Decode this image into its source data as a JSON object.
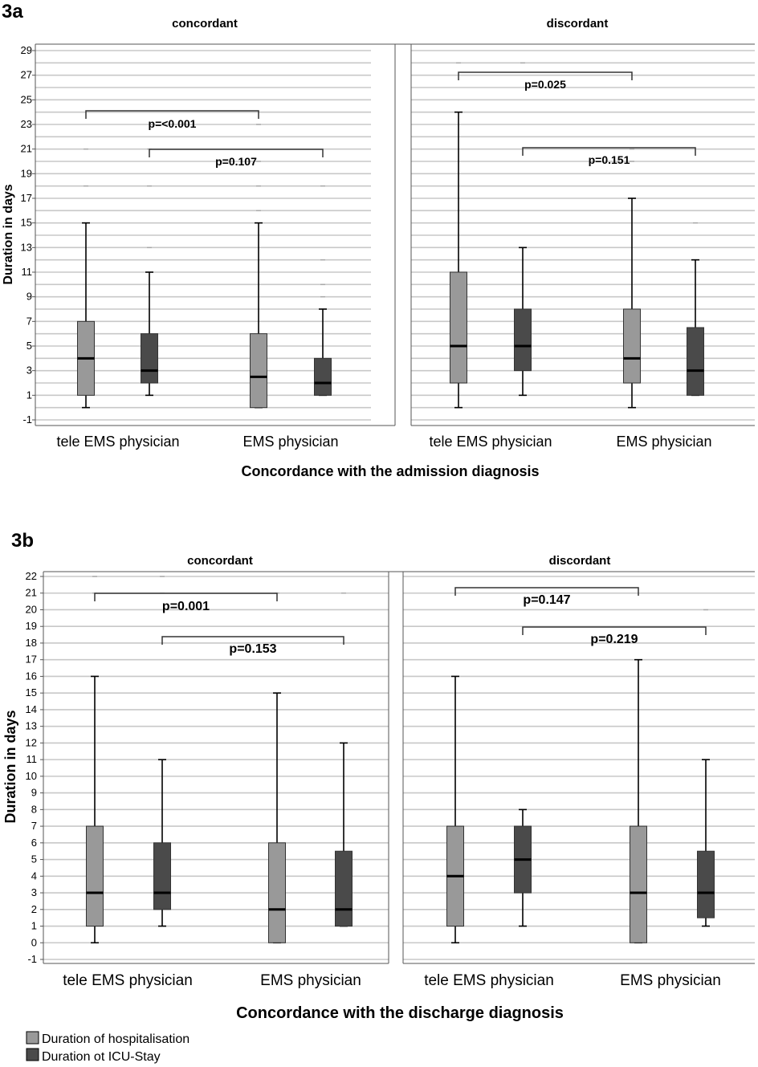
{
  "colors": {
    "hospitalisation": "#999999",
    "icu": "#4a4a4a",
    "grid": "#c8c8c8",
    "axis": "#555555"
  },
  "legend": {
    "hospitalisation": "Duration of hospitalisation",
    "icu": "Duration ot ICU-Stay"
  },
  "chart_data": [
    {
      "type": "boxplot",
      "panel_label": "3a",
      "xlabel": "Concordance with the admission diagnosis",
      "ylabel": "Duration in days",
      "ylim": [
        -1,
        29.5
      ],
      "yticks": [
        -1,
        1,
        3,
        5,
        7,
        9,
        11,
        13,
        15,
        17,
        19,
        21,
        23,
        25,
        27,
        29
      ],
      "facets": [
        {
          "title": "concordant",
          "categories": [
            "tele EMS physician",
            "EMS physician"
          ],
          "series": [
            {
              "name": "Duration of hospitalisation",
              "boxes": [
                {
                  "min": 0,
                  "q1": 1,
                  "median": 4,
                  "q3": 7,
                  "max": 15,
                  "outliers": [
                    18,
                    21
                  ]
                },
                {
                  "min": 0,
                  "q1": 0,
                  "median": 2.5,
                  "q3": 6,
                  "max": 15,
                  "outliers": [
                    16,
                    18,
                    20,
                    23
                  ]
                }
              ]
            },
            {
              "name": "Duration ot ICU-Stay",
              "boxes": [
                {
                  "min": 1,
                  "q1": 2,
                  "median": 3,
                  "q3": 6,
                  "max": 11,
                  "outliers": [
                    13,
                    18,
                    21
                  ]
                },
                {
                  "min": 1,
                  "q1": 1,
                  "median": 2,
                  "q3": 4,
                  "max": 8,
                  "outliers": [
                    9,
                    10,
                    12,
                    18
                  ]
                }
              ]
            }
          ],
          "annotations": [
            {
              "text": "p=<0.001",
              "from": "tele EMS physician / hospitalisation",
              "to": "EMS physician / hospitalisation"
            },
            {
              "text": "p=0.107",
              "from": "tele EMS physician / ICU-Stay",
              "to": "EMS physician / ICU-Stay"
            }
          ]
        },
        {
          "title": "discordant",
          "categories": [
            "tele EMS physician",
            "EMS physician"
          ],
          "series": [
            {
              "name": "Duration of hospitalisation",
              "boxes": [
                {
                  "min": 0,
                  "q1": 2,
                  "median": 5,
                  "q3": 11,
                  "max": 24,
                  "outliers": [
                    28
                  ]
                },
                {
                  "min": 0,
                  "q1": 2,
                  "median": 4,
                  "q3": 8,
                  "max": 17,
                  "outliers": [
                    20,
                    21
                  ]
                }
              ]
            },
            {
              "name": "Duration ot ICU-Stay",
              "boxes": [
                {
                  "min": 1,
                  "q1": 3,
                  "median": 5,
                  "q3": 8,
                  "max": 13,
                  "outliers": [
                    28
                  ]
                },
                {
                  "min": 1,
                  "q1": 1,
                  "median": 3,
                  "q3": 6.5,
                  "max": 12,
                  "outliers": [
                    15
                  ]
                }
              ]
            }
          ],
          "annotations": [
            {
              "text": "p=0.025",
              "from": "tele EMS physician / hospitalisation",
              "to": "EMS physician / hospitalisation"
            },
            {
              "text": "p=0.151",
              "from": "tele EMS physician / ICU-Stay",
              "to": "EMS physician / ICU-Stay"
            }
          ]
        }
      ]
    },
    {
      "type": "boxplot",
      "panel_label": "3b",
      "xlabel": "Concordance with the discharge diagnosis",
      "ylabel": "Duration in days",
      "ylim": [
        -1,
        22
      ],
      "yticks": [
        -1,
        0,
        1,
        2,
        3,
        4,
        5,
        6,
        7,
        8,
        9,
        10,
        11,
        12,
        13,
        14,
        15,
        16,
        17,
        18,
        19,
        20,
        21,
        22
      ],
      "facets": [
        {
          "title": "concordant",
          "categories": [
            "tele EMS physician",
            "EMS physician"
          ],
          "series": [
            {
              "name": "Duration of hospitalisation",
              "boxes": [
                {
                  "min": 0,
                  "q1": 1,
                  "median": 3,
                  "q3": 7,
                  "max": 16,
                  "outliers": [
                    21,
                    22
                  ]
                },
                {
                  "min": 0,
                  "q1": 0,
                  "median": 2,
                  "q3": 6,
                  "max": 15,
                  "outliers": [
                    21
                  ]
                }
              ]
            },
            {
              "name": "Duration ot ICU-Stay",
              "boxes": [
                {
                  "min": 1,
                  "q1": 2,
                  "median": 3,
                  "q3": 6,
                  "max": 11,
                  "outliers": [
                    21,
                    22
                  ]
                },
                {
                  "min": 1,
                  "q1": 1,
                  "median": 2,
                  "q3": 5.5,
                  "max": 12,
                  "outliers": [
                    21
                  ]
                }
              ]
            }
          ],
          "annotations": [
            {
              "text": "p=0.001",
              "from": "tele EMS physician / hospitalisation",
              "to": "EMS physician / hospitalisation"
            },
            {
              "text": "p=0.153",
              "from": "tele EMS physician / ICU-Stay",
              "to": "EMS physician / ICU-Stay"
            }
          ]
        },
        {
          "title": "discordant",
          "categories": [
            "tele EMS physician",
            "EMS physician"
          ],
          "series": [
            {
              "name": "Duration of hospitalisation",
              "boxes": [
                {
                  "min": 0,
                  "q1": 1,
                  "median": 4,
                  "q3": 7,
                  "max": 16,
                  "outliers": []
                },
                {
                  "min": 0,
                  "q1": 0,
                  "median": 3,
                  "q3": 7,
                  "max": 17,
                  "outliers": []
                }
              ]
            },
            {
              "name": "Duration ot ICU-Stay",
              "boxes": [
                {
                  "min": 1,
                  "q1": 3,
                  "median": 5,
                  "q3": 7,
                  "max": 8,
                  "outliers": []
                },
                {
                  "min": 1,
                  "q1": 1.5,
                  "median": 3,
                  "q3": 5.5,
                  "max": 11,
                  "outliers": [
                    20
                  ]
                }
              ]
            }
          ],
          "annotations": [
            {
              "text": "p=0.147",
              "from": "tele EMS physician / hospitalisation",
              "to": "EMS physician / hospitalisation"
            },
            {
              "text": "p=0.219",
              "from": "tele EMS physician / ICU-Stay",
              "to": "EMS physician / ICU-Stay"
            }
          ]
        }
      ]
    }
  ]
}
